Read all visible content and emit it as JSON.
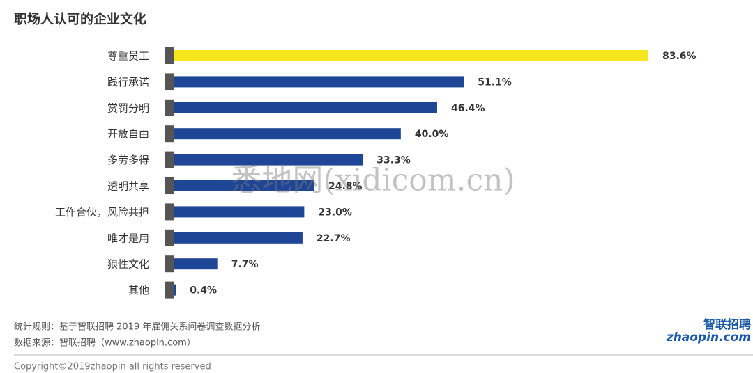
{
  "chart_data": {
    "type": "bar",
    "orientation": "horizontal",
    "title": "职场人认可的企业文化",
    "categories": [
      "尊重员工",
      "践行承诺",
      "赏罚分明",
      "开放自由",
      "多劳多得",
      "透明共享",
      "工作合伙，风险共担",
      "唯才是用",
      "狼性文化",
      "其他"
    ],
    "values": [
      83.6,
      51.1,
      46.4,
      40.0,
      33.3,
      24.8,
      23.0,
      22.7,
      7.7,
      0.4
    ],
    "value_labels": [
      "83.6%",
      "51.1%",
      "46.4%",
      "40.0%",
      "33.3%",
      "24.8%",
      "23.0%",
      "22.7%",
      "7.7%",
      "0.4%"
    ],
    "colors": [
      "#f7e51d",
      "#1f4596",
      "#1f4596",
      "#1f4596",
      "#1f4596",
      "#1f4596",
      "#1f4596",
      "#1f4596",
      "#1f4596",
      "#1f4596"
    ],
    "notes": [
      "统计规则：基于智联招聘 2019 年雇佣关系问卷调查数据分析",
      "数据来源：智联招聘（www.zhaopin.com）"
    ],
    "copyright": "Copyright©2019zhaopin all rights reserved",
    "logo": {
      "title": "智联招聘",
      "site": "zhaopin.com"
    },
    "watermark": "悉地网(xidicom.cn)"
  }
}
